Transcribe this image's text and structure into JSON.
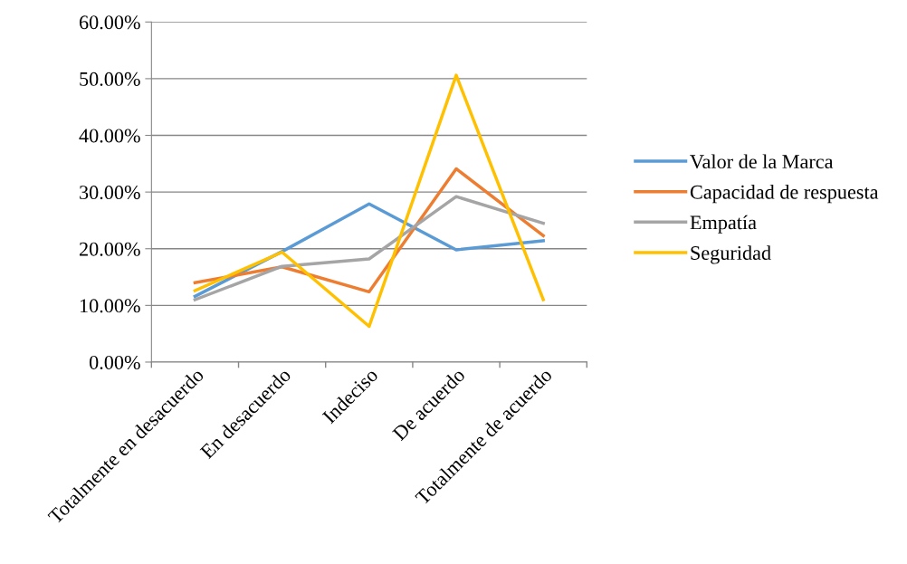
{
  "chart_data": {
    "type": "line",
    "categories": [
      "Totalmente en desacuerdo",
      "En desacuerdo",
      "Indeciso",
      "De acuerdo",
      "Totalmente de acuerdo"
    ],
    "series": [
      {
        "name": "Valor de la Marca",
        "color": "#5b9bd5",
        "values": [
          11.6,
          19.5,
          27.9,
          19.8,
          21.4
        ]
      },
      {
        "name": "Capacidad de respuesta",
        "color": "#ed7d31",
        "values": [
          14.0,
          16.8,
          12.4,
          34.1,
          22.3
        ]
      },
      {
        "name": "Empatía",
        "color": "#a5a5a5",
        "values": [
          11.0,
          16.9,
          18.2,
          29.2,
          24.5
        ]
      },
      {
        "name": "Seguridad",
        "color": "#ffc000",
        "values": [
          12.6,
          19.4,
          6.3,
          50.6,
          11.0
        ]
      }
    ],
    "ylim": [
      0,
      60
    ],
    "yticks": [
      {
        "value": 0,
        "label": "0.00%"
      },
      {
        "value": 10,
        "label": "10.00%"
      },
      {
        "value": 20,
        "label": "20.00%"
      },
      {
        "value": 30,
        "label": "30.00%"
      },
      {
        "value": 40,
        "label": "40.00%"
      },
      {
        "value": 50,
        "label": "50.00%"
      },
      {
        "value": 60,
        "label": "60.00%"
      }
    ],
    "grid": "y",
    "legend": "right",
    "marker": "none",
    "line_style": "solid"
  }
}
